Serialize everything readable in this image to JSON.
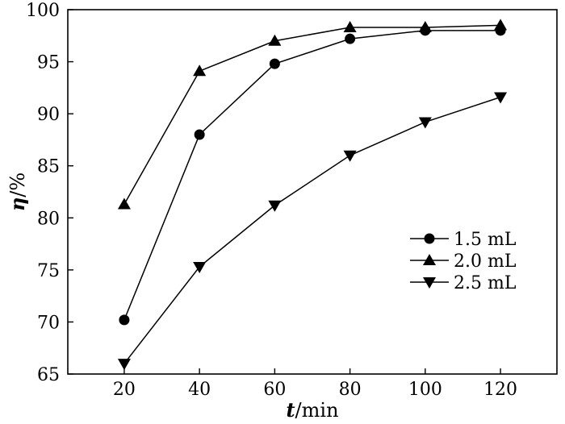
{
  "chart_data": {
    "type": "line",
    "title": "",
    "xlabel": {
      "symbol": "t",
      "unit": "/min"
    },
    "ylabel": {
      "symbol": "η",
      "unit": "/%"
    },
    "x": [
      20,
      40,
      60,
      80,
      100,
      120
    ],
    "xticks": [
      20,
      40,
      60,
      80,
      100,
      120
    ],
    "yticks": [
      65,
      70,
      75,
      80,
      85,
      90,
      95,
      100
    ],
    "xlim": [
      5,
      135
    ],
    "ylim": [
      65,
      100
    ],
    "grid": false,
    "legend_position": "right",
    "series": [
      {
        "name": "1.5 mL",
        "marker": "circle",
        "values": [
          70.2,
          88.0,
          94.8,
          97.2,
          98.0,
          98.0
        ]
      },
      {
        "name": "2.0 mL",
        "marker": "triangle-up",
        "values": [
          81.3,
          94.1,
          97.0,
          98.3,
          98.3,
          98.5
        ]
      },
      {
        "name": "2.5 mL",
        "marker": "triangle-down",
        "values": [
          66.0,
          75.3,
          81.2,
          86.0,
          89.2,
          91.6
        ]
      }
    ]
  }
}
